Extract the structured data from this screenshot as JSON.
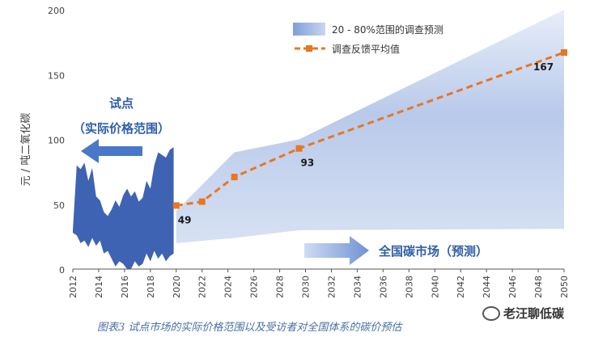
{
  "chart_data": {
    "type": "area",
    "ylabel": "元 / 吨二氧化碳",
    "ylim": [
      0,
      200
    ],
    "yticks": [
      0,
      50,
      100,
      150,
      200
    ],
    "xlim": [
      2012,
      2050
    ],
    "xticks": [
      "2012",
      "2014",
      "2016",
      "2018",
      "2020",
      "2022",
      "2024",
      "2026",
      "2028",
      "2030",
      "2032",
      "2034",
      "2036",
      "2038",
      "2040",
      "2042",
      "2044",
      "2046",
      "2048",
      "2050"
    ],
    "legend_position": "top-right",
    "series": [
      {
        "name": "20 - 80%范围的调查预测",
        "type": "band",
        "x": [
          2020,
          2024.5,
          2029.5,
          2050
        ],
        "upper": [
          45,
          90,
          100,
          200
        ],
        "lower": [
          20,
          24,
          30,
          31
        ]
      },
      {
        "name": "调查反馈平均值",
        "type": "line",
        "x": [
          2020,
          2022,
          2024.5,
          2029.5,
          2050
        ],
        "values": [
          49,
          52,
          71,
          93,
          167
        ],
        "point_labels": [
          "49",
          "",
          "",
          "93",
          "167"
        ]
      },
      {
        "name": "试点（实际价格范围）",
        "type": "range",
        "x": [
          2012,
          2012.3,
          2012.6,
          2012.9,
          2013.2,
          2013.5,
          2013.8,
          2014.1,
          2014.4,
          2014.7,
          2015.0,
          2015.3,
          2015.6,
          2015.9,
          2016.2,
          2016.5,
          2016.8,
          2017.1,
          2017.4,
          2017.7,
          2018.0,
          2018.3,
          2018.6,
          2018.9,
          2019.2,
          2019.5,
          2019.8
        ],
        "upper": [
          30,
          80,
          77,
          82,
          68,
          78,
          56,
          53,
          44,
          41,
          46,
          53,
          48,
          57,
          62,
          56,
          60,
          52,
          55,
          68,
          62,
          80,
          90,
          88,
          86,
          92,
          94
        ],
        "lower": [
          28,
          26,
          20,
          22,
          17,
          24,
          18,
          22,
          12,
          14,
          8,
          2,
          6,
          4,
          0,
          0,
          6,
          2,
          4,
          12,
          6,
          14,
          8,
          12,
          6,
          10,
          12
        ]
      }
    ],
    "annotations": {
      "pilot_title": "试点",
      "pilot_subtitle": "（实际价格范围）",
      "national_label": "全国碳市场（预测）"
    },
    "colors": {
      "band": "#b9c9e8",
      "line": "#e87722",
      "pilot": "#3f63b3",
      "arrow": "#4a78c8",
      "axis": "#555555"
    }
  },
  "caption": "图表3 试点市场的实际价格范围以及受访者对全国体系的碳价预估",
  "watermark": "老汪聊低碳"
}
